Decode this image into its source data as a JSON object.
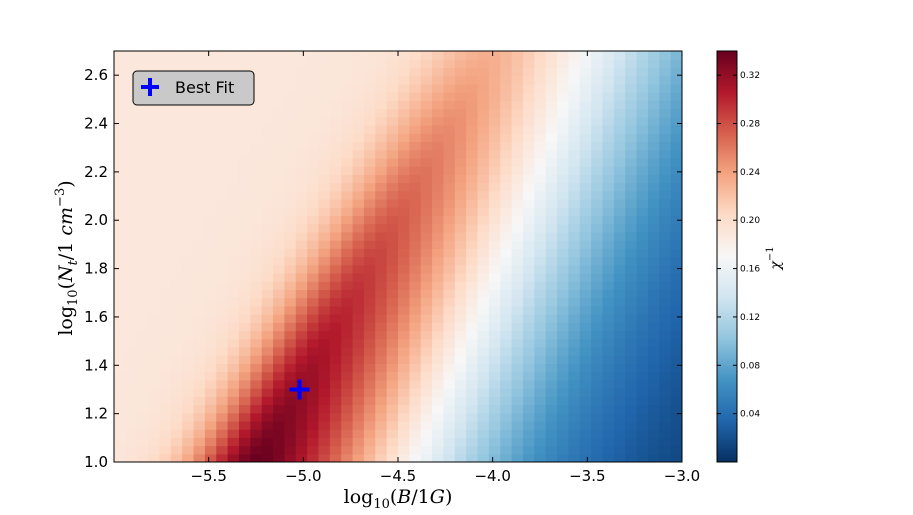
{
  "chart_data": {
    "type": "heatmap",
    "title": "",
    "xlabel": "log10(B/1G)",
    "ylabel": "log10(Nt/1 cm^-3)",
    "xlim": [
      -6.0,
      -3.0
    ],
    "ylim": [
      1.0,
      2.7
    ],
    "x_ticks": [
      -5.5,
      -5.0,
      -4.5,
      -4.0,
      -3.5,
      -3.0
    ],
    "x_tick_labels": [
      "−5.5",
      "−5.0",
      "−4.5",
      "−4.0",
      "−3.5",
      "−3.0"
    ],
    "y_ticks": [
      1.0,
      1.2,
      1.4,
      1.6,
      1.8,
      2.0,
      2.2,
      2.4,
      2.6
    ],
    "y_tick_labels": [
      "1.0",
      "1.2",
      "1.4",
      "1.6",
      "1.8",
      "2.0",
      "2.2",
      "2.4",
      "2.6"
    ],
    "grid": false,
    "colormap": "RdBu_r",
    "colorbar": {
      "label": "χ⁻¹",
      "range": [
        0.0,
        0.34
      ],
      "ticks": [
        0.04,
        0.08,
        0.12,
        0.16,
        0.2,
        0.24,
        0.28,
        0.32
      ],
      "tick_labels": [
        "0.04",
        "0.08",
        "0.12",
        "0.16",
        "0.20",
        "0.24",
        "0.28",
        "0.32"
      ]
    },
    "grid_resolution": {
      "nx": 50,
      "ny": 50
    },
    "model": {
      "ridge_slope_dlogN_dlogB": 1.38,
      "ridge_anchor": [
        -5.02,
        1.3
      ],
      "peak_value": 0.34,
      "far_left_value": 0.19,
      "far_right_value": 0.0
    },
    "best_fit": {
      "x": -5.02,
      "y": 1.3,
      "color": "#0000ff"
    },
    "legend": {
      "position": "upper-left",
      "entries": [
        "Best Fit"
      ]
    }
  }
}
